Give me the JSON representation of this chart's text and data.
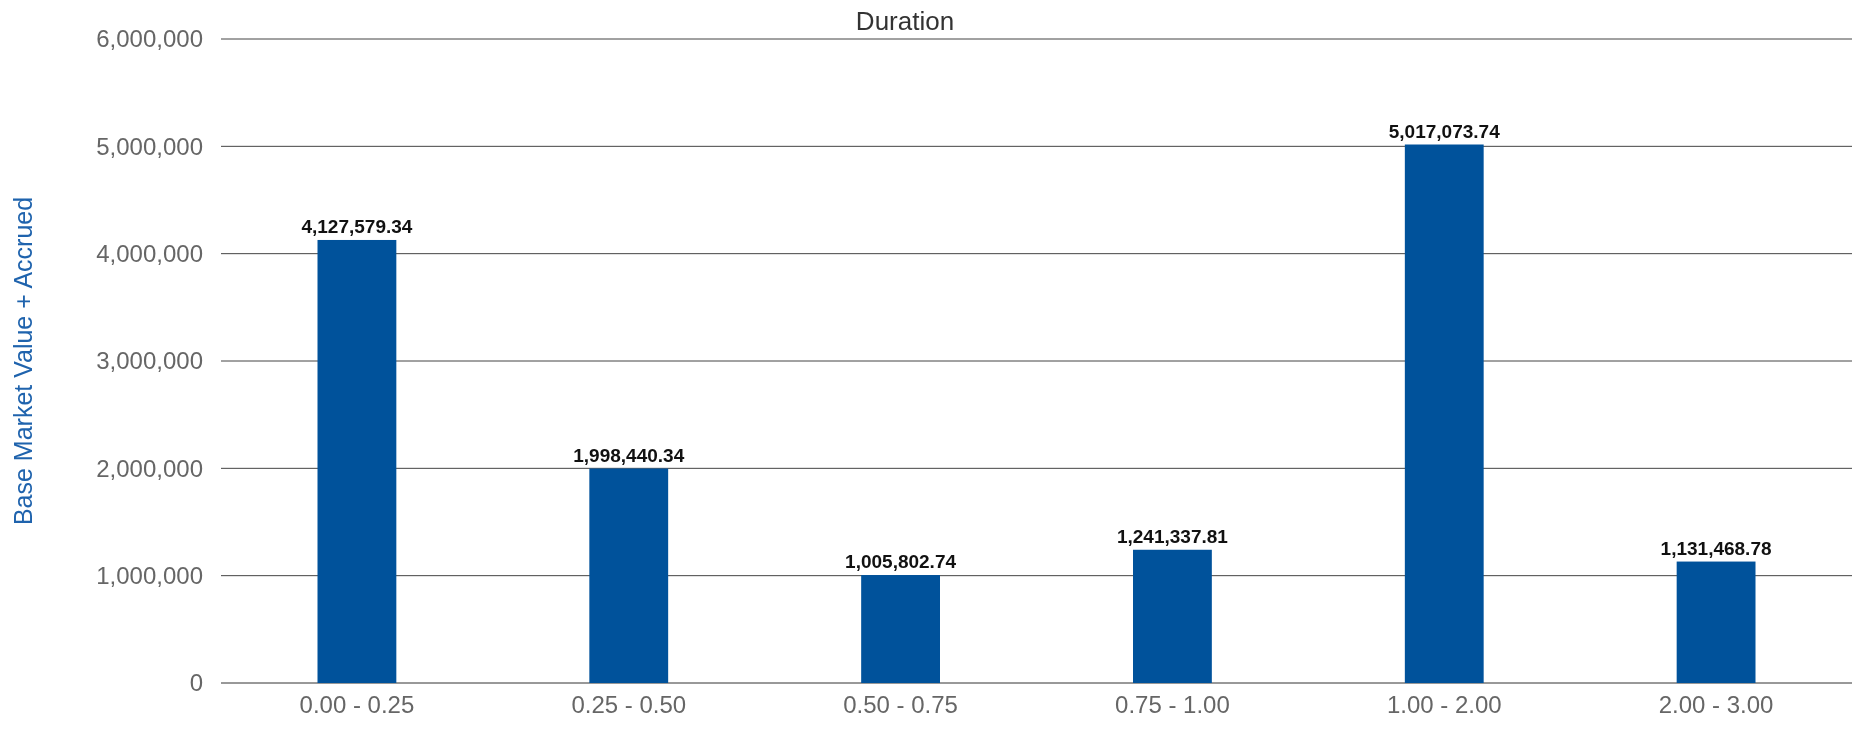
{
  "chart_data": {
    "type": "bar",
    "title": "Duration",
    "ylabel": "Base Market Value + Accrued",
    "categories": [
      "0.00 - 0.25",
      "0.25 - 0.50",
      "0.50 - 0.75",
      "0.75 - 1.00",
      "1.00 - 2.00",
      "2.00 - 3.00"
    ],
    "values": [
      4127579.34,
      1998440.34,
      1005802.74,
      1241337.81,
      5017073.74,
      1131468.78
    ],
    "color": "#00529b",
    "ylim": [
      0,
      6000000
    ],
    "yticks": [
      {
        "value": 0,
        "label": "0"
      },
      {
        "value": 1000000,
        "label": "1,000,000"
      },
      {
        "value": 2000000,
        "label": "2,000,000"
      },
      {
        "value": 3000000,
        "label": "3,000,000"
      },
      {
        "value": 4000000,
        "label": "4,000,000"
      },
      {
        "value": 5000000,
        "label": "5,000,000"
      },
      {
        "value": 6000000,
        "label": "6,000,000"
      }
    ],
    "value_labels": [
      "4,127,579.34",
      "1,998,440.34",
      "1,005,802.74",
      "1,241,337.81",
      "5,017,073.74",
      "1,131,468.78"
    ],
    "grid": "y"
  }
}
